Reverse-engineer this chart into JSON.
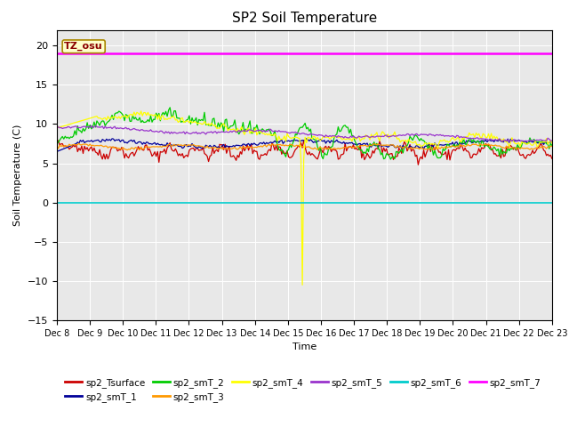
{
  "title": "SP2 Soil Temperature",
  "ylabel": "Soil Temperature (C)",
  "xlabel": "Time",
  "ylim": [
    -15,
    22
  ],
  "yticks": [
    -15,
    -10,
    -5,
    0,
    5,
    10,
    15,
    20
  ],
  "date_labels": [
    "Dec 8",
    "Dec 9",
    "Dec 10",
    "Dec 11",
    "Dec 12",
    "Dec 13",
    "Dec 14",
    "Dec 15",
    "Dec 16",
    "Dec 17",
    "Dec 18",
    "Dec 19",
    "Dec 20",
    "Dec 21",
    "Dec 22",
    "Dec 23"
  ],
  "series_colors": {
    "sp2_Tsurface": "#cc0000",
    "sp2_smT_1": "#000099",
    "sp2_smT_2": "#00cc00",
    "sp2_smT_3": "#ff9900",
    "sp2_smT_4": "#ffff00",
    "sp2_smT_5": "#9933cc",
    "sp2_smT_6": "#00cccc",
    "sp2_smT_7": "#ff00ff"
  },
  "tz_osu_label": "TZ_osu",
  "tz_osu_value": 19.0,
  "sp2_smT_6_value": -0.05,
  "background_color": "#e8e8e8",
  "title_fontsize": 11,
  "legend_row1": [
    "sp2_Tsurface",
    "sp2_smT_1",
    "sp2_smT_2",
    "sp2_smT_3",
    "sp2_smT_4",
    "sp2_smT_5"
  ],
  "legend_row2": [
    "sp2_smT_6",
    "sp2_smT_7"
  ]
}
